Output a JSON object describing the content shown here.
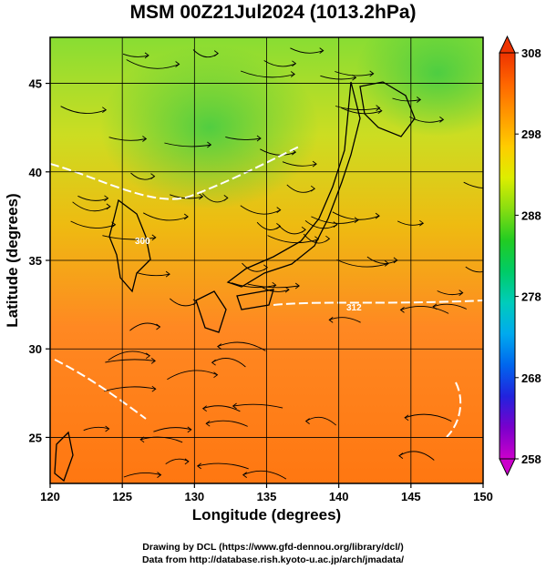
{
  "title": "MSM 00Z21Jul2024 (1013.2hPa)",
  "xlabel": "Longitude (degrees)",
  "ylabel": "Latitude  (degrees)",
  "credits": {
    "line1": "Drawing by DCL (https://www.gfd-dennou.org/library/dcl/)",
    "line2": "Data from http://database.rish.kyoto-u.ac.jp/arch/jmadata/"
  },
  "map": {
    "lon_range": [
      120,
      150
    ],
    "lat_range": [
      22.4,
      47.6
    ],
    "x_ticks": [
      "120",
      "125",
      "130",
      "135",
      "140",
      "145",
      "150"
    ],
    "y_ticks": [
      "25",
      "30",
      "35",
      "40",
      "45"
    ]
  },
  "contour_labels": [
    "300",
    "312"
  ],
  "colorbar": {
    "min": 258,
    "max": 308,
    "tick_labels": [
      "308",
      "298",
      "288",
      "278",
      "268",
      "258"
    ],
    "colors": [
      "#cc00cc",
      "#7a00cc",
      "#2222dd",
      "#0066ee",
      "#00aaee",
      "#00ccbb",
      "#00cc66",
      "#22cc22",
      "#88dd11",
      "#ddee00",
      "#ffcc00",
      "#ff9900",
      "#ff6600",
      "#ee3300"
    ]
  }
}
